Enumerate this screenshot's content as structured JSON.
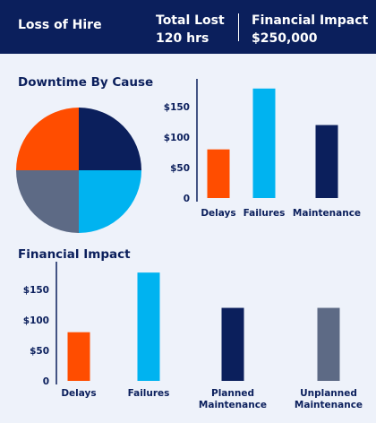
{
  "header": {
    "title": "Loss of Hire",
    "total_lost_label": "Total Lost",
    "total_lost_value": "120 hrs",
    "financial_label": "Financial Impact",
    "financial_value": "$250,000"
  },
  "sections": {
    "downtime_title": "Downtime By Cause",
    "financial_title": "Financial Impact"
  },
  "colors": {
    "navy": "#0b1f5c",
    "orange": "#ff4d00",
    "cyan": "#00b3f0",
    "slate": "#5d6a85"
  },
  "chart_data": [
    {
      "type": "pie",
      "slices": [
        {
          "value": 25,
          "color": "#0b1f5c"
        },
        {
          "value": 25,
          "color": "#00b3f0"
        },
        {
          "value": 25,
          "color": "#5d6a85"
        },
        {
          "value": 25,
          "color": "#ff4d00"
        }
      ]
    },
    {
      "type": "bar",
      "categories": [
        "Delays",
        "Failures",
        "Maintenance"
      ],
      "values": [
        80,
        180,
        120
      ],
      "colors": [
        "#ff4d00",
        "#00b3f0",
        "#0b1f5c"
      ],
      "ylim": [
        0,
        190
      ],
      "yticks": [
        0,
        50,
        100,
        150
      ],
      "ytick_labels": [
        "0",
        "$50",
        "$100",
        "$150"
      ]
    },
    {
      "type": "bar",
      "categories": [
        "Delays",
        "Failures",
        "Planned Maintenance",
        "Unplanned Maintenance"
      ],
      "category_lines": [
        [
          "Delays"
        ],
        [
          "Failures"
        ],
        [
          "Planned",
          "Maintenance"
        ],
        [
          "Unplanned",
          "Maintenance"
        ]
      ],
      "values": [
        80,
        178,
        120,
        120
      ],
      "colors": [
        "#ff4d00",
        "#00b3f0",
        "#0b1f5c",
        "#5d6a85"
      ],
      "ylim": [
        0,
        190
      ],
      "yticks": [
        0,
        50,
        100,
        150
      ],
      "ytick_labels": [
        "0",
        "$50",
        "$100",
        "$150"
      ]
    }
  ]
}
